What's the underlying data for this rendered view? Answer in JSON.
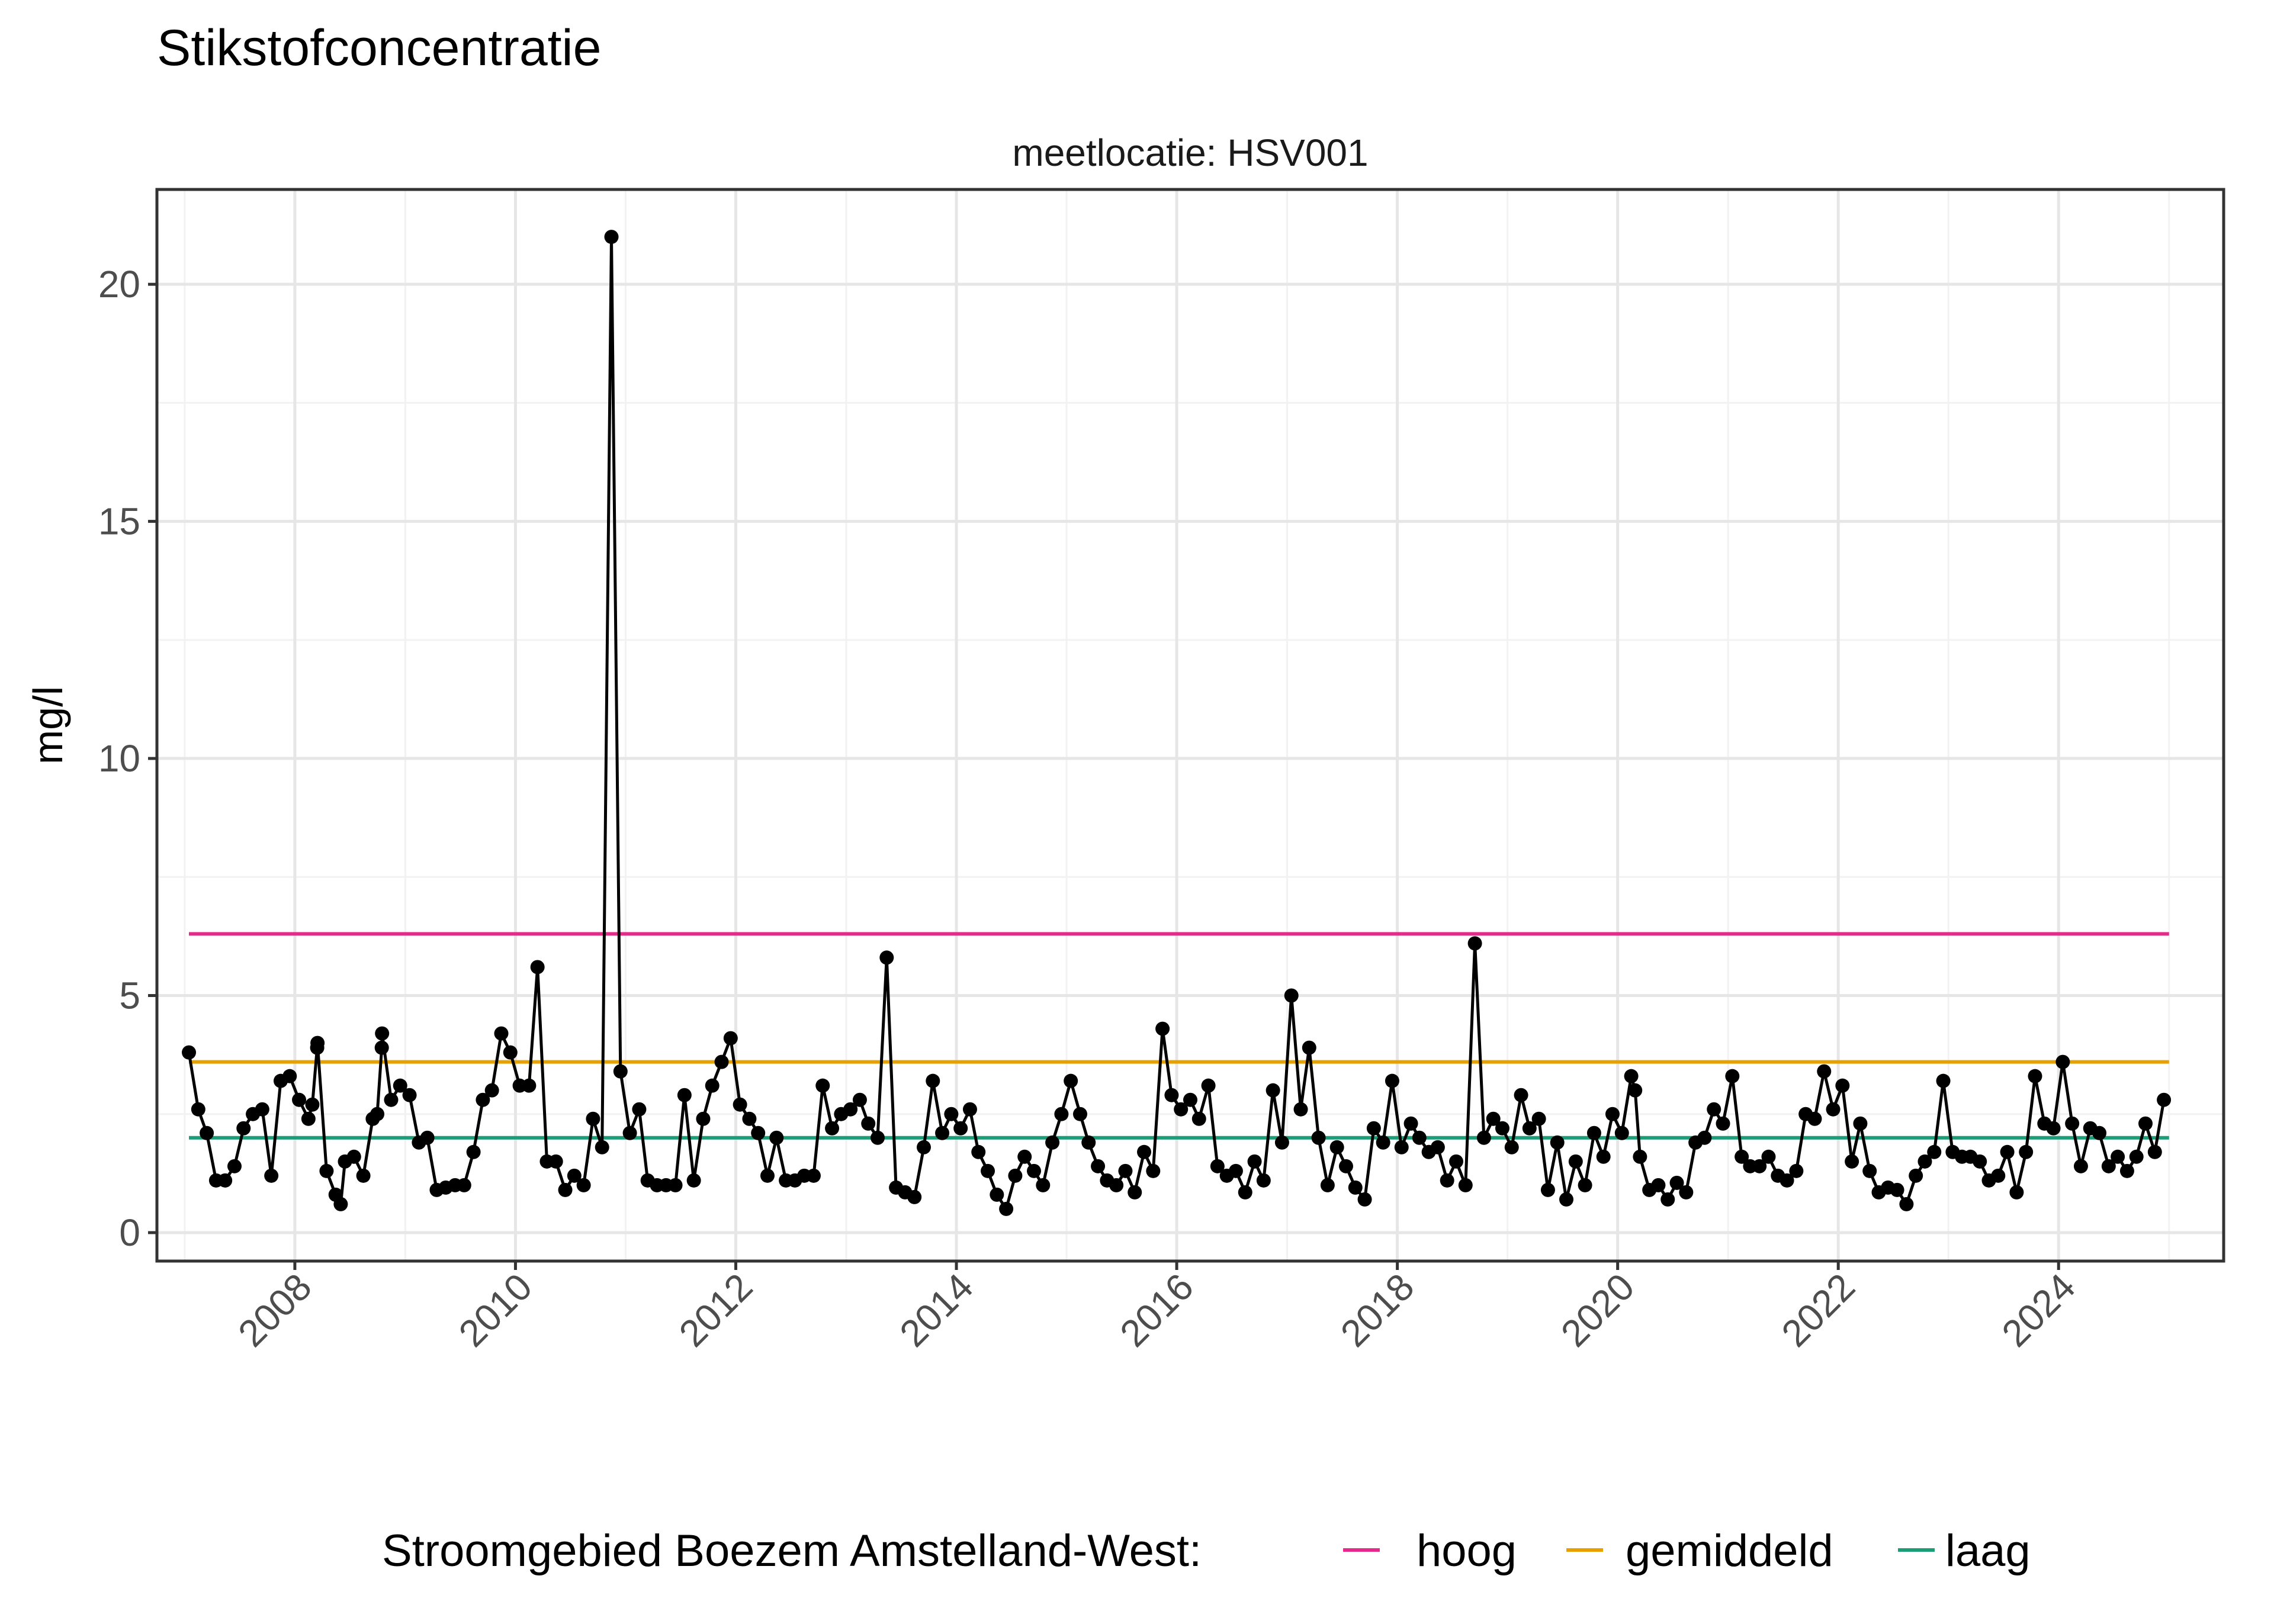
{
  "chart_data": {
    "type": "line",
    "title": "Stikstofconcentratie",
    "facet_label": "meetlocatie: HSV001",
    "xlabel": "",
    "ylabel": "mg/l",
    "x_ticks": [
      "2008",
      "2010",
      "2012",
      "2014",
      "2016",
      "2018",
      "2020",
      "2022",
      "2024"
    ],
    "y_ticks": [
      "0",
      "5",
      "10",
      "15",
      "20"
    ],
    "xlim": [
      "2006-10-01",
      "2025-07-01"
    ],
    "ylim": [
      -0.6,
      22
    ],
    "grid": true,
    "legend": {
      "position": "bottom",
      "title": "Stroomgebied Boezem Amstelland-West:",
      "items": [
        {
          "label": "hoog",
          "color": "#e7298a"
        },
        {
          "label": "gemiddeld",
          "color": "#e6a000"
        },
        {
          "label": "laag",
          "color": "#1b9e77"
        }
      ]
    },
    "reference_lines": [
      {
        "name": "hoog",
        "value": 6.3,
        "x_start": "2007-01-15",
        "x_end": "2025-01-01",
        "color": "#e7298a"
      },
      {
        "name": "gemiddeld",
        "value": 3.6,
        "x_start": "2007-01-15",
        "x_end": "2025-01-01",
        "color": "#e6a000"
      },
      {
        "name": "laag",
        "value": 2.0,
        "x_start": "2007-01-15",
        "x_end": "2025-01-01",
        "color": "#1b9e77"
      }
    ],
    "series": [
      {
        "marker_color": "#000000",
        "points": [
          [
            "2007-01-15",
            3.8
          ],
          [
            "2007-02-15",
            2.6
          ],
          [
            "2007-03-15",
            2.1
          ],
          [
            "2007-04-15",
            1.1
          ],
          [
            "2007-05-15",
            1.1
          ],
          [
            "2007-06-15",
            1.4
          ],
          [
            "2007-07-15",
            2.2
          ],
          [
            "2007-08-15",
            2.5
          ],
          [
            "2007-09-15",
            2.6
          ],
          [
            "2007-10-15",
            1.2
          ],
          [
            "2007-11-15",
            3.2
          ],
          [
            "2007-12-15",
            3.3
          ],
          [
            "2008-01-15",
            2.8
          ],
          [
            "2008-02-15",
            2.4
          ],
          [
            "2008-02-28",
            2.7
          ],
          [
            "2008-03-15",
            3.9
          ],
          [
            "2008-03-16",
            4.0
          ],
          [
            "2008-04-15",
            1.3
          ],
          [
            "2008-05-15",
            0.8
          ],
          [
            "2008-06-01",
            0.6
          ],
          [
            "2008-06-15",
            1.5
          ],
          [
            "2008-07-15",
            1.6
          ],
          [
            "2008-08-15",
            1.2
          ],
          [
            "2008-09-15",
            2.4
          ],
          [
            "2008-09-30",
            2.5
          ],
          [
            "2008-10-15",
            3.9
          ],
          [
            "2008-10-16",
            4.2
          ],
          [
            "2008-11-15",
            2.8
          ],
          [
            "2008-12-15",
            3.1
          ],
          [
            "2009-01-15",
            2.9
          ],
          [
            "2009-02-15",
            1.9
          ],
          [
            "2009-03-15",
            2.0
          ],
          [
            "2009-04-15",
            0.9
          ],
          [
            "2009-05-15",
            0.95
          ],
          [
            "2009-06-15",
            1.0
          ],
          [
            "2009-07-15",
            1.0
          ],
          [
            "2009-08-15",
            1.7
          ],
          [
            "2009-09-15",
            2.8
          ],
          [
            "2009-10-15",
            3.0
          ],
          [
            "2009-11-15",
            4.2
          ],
          [
            "2009-12-15",
            3.8
          ],
          [
            "2010-01-15",
            3.1
          ],
          [
            "2010-02-15",
            3.1
          ],
          [
            "2010-03-15",
            5.6
          ],
          [
            "2010-04-15",
            1.5
          ],
          [
            "2010-05-15",
            1.5
          ],
          [
            "2010-06-15",
            0.9
          ],
          [
            "2010-07-15",
            1.2
          ],
          [
            "2010-08-15",
            1.0
          ],
          [
            "2010-09-15",
            2.4
          ],
          [
            "2010-10-15",
            1.8
          ],
          [
            "2010-11-15",
            21.0
          ],
          [
            "2010-12-15",
            3.4
          ],
          [
            "2011-01-15",
            2.1
          ],
          [
            "2011-02-15",
            2.6
          ],
          [
            "2011-03-15",
            1.1
          ],
          [
            "2011-04-15",
            1.0
          ],
          [
            "2011-05-15",
            1.0
          ],
          [
            "2011-06-15",
            1.0
          ],
          [
            "2011-07-15",
            2.9
          ],
          [
            "2011-08-15",
            1.1
          ],
          [
            "2011-09-15",
            2.4
          ],
          [
            "2011-10-15",
            3.1
          ],
          [
            "2011-11-15",
            3.6
          ],
          [
            "2011-12-15",
            4.1
          ],
          [
            "2012-01-15",
            2.7
          ],
          [
            "2012-02-15",
            2.4
          ],
          [
            "2012-03-15",
            2.1
          ],
          [
            "2012-04-15",
            1.2
          ],
          [
            "2012-05-15",
            2.0
          ],
          [
            "2012-06-15",
            1.1
          ],
          [
            "2012-07-15",
            1.1
          ],
          [
            "2012-08-15",
            1.2
          ],
          [
            "2012-09-15",
            1.2
          ],
          [
            "2012-10-15",
            3.1
          ],
          [
            "2012-11-15",
            2.2
          ],
          [
            "2012-12-15",
            2.5
          ],
          [
            "2013-01-15",
            2.6
          ],
          [
            "2013-02-15",
            2.8
          ],
          [
            "2013-03-15",
            2.3
          ],
          [
            "2013-04-15",
            2.0
          ],
          [
            "2013-05-15",
            5.8
          ],
          [
            "2013-06-15",
            0.95
          ],
          [
            "2013-07-15",
            0.85
          ],
          [
            "2013-08-15",
            0.75
          ],
          [
            "2013-09-15",
            1.8
          ],
          [
            "2013-10-15",
            3.2
          ],
          [
            "2013-11-15",
            2.1
          ],
          [
            "2013-12-15",
            2.5
          ],
          [
            "2014-01-15",
            2.2
          ],
          [
            "2014-02-15",
            2.6
          ],
          [
            "2014-03-15",
            1.7
          ],
          [
            "2014-04-15",
            1.3
          ],
          [
            "2014-05-15",
            0.8
          ],
          [
            "2014-06-15",
            0.5
          ],
          [
            "2014-07-15",
            1.2
          ],
          [
            "2014-08-15",
            1.6
          ],
          [
            "2014-09-15",
            1.3
          ],
          [
            "2014-10-15",
            1.0
          ],
          [
            "2014-11-15",
            1.9
          ],
          [
            "2014-12-15",
            2.5
          ],
          [
            "2015-01-15",
            3.2
          ],
          [
            "2015-02-15",
            2.5
          ],
          [
            "2015-03-15",
            1.9
          ],
          [
            "2015-04-15",
            1.4
          ],
          [
            "2015-05-15",
            1.1
          ],
          [
            "2015-06-15",
            1.0
          ],
          [
            "2015-07-15",
            1.3
          ],
          [
            "2015-08-15",
            0.85
          ],
          [
            "2015-09-15",
            1.7
          ],
          [
            "2015-10-15",
            1.3
          ],
          [
            "2015-11-15",
            4.3
          ],
          [
            "2015-12-15",
            2.9
          ],
          [
            "2016-01-15",
            2.6
          ],
          [
            "2016-02-15",
            2.8
          ],
          [
            "2016-03-15",
            2.4
          ],
          [
            "2016-04-15",
            3.1
          ],
          [
            "2016-05-15",
            1.4
          ],
          [
            "2016-06-15",
            1.2
          ],
          [
            "2016-07-15",
            1.3
          ],
          [
            "2016-08-15",
            0.85
          ],
          [
            "2016-09-15",
            1.5
          ],
          [
            "2016-10-15",
            1.1
          ],
          [
            "2016-11-15",
            3.0
          ],
          [
            "2016-12-15",
            1.9
          ],
          [
            "2017-01-15",
            5.0
          ],
          [
            "2017-02-15",
            2.6
          ],
          [
            "2017-03-15",
            3.9
          ],
          [
            "2017-04-15",
            2.0
          ],
          [
            "2017-05-15",
            1.0
          ],
          [
            "2017-06-15",
            1.8
          ],
          [
            "2017-07-15",
            1.4
          ],
          [
            "2017-08-15",
            0.95
          ],
          [
            "2017-09-15",
            0.7
          ],
          [
            "2017-10-15",
            2.2
          ],
          [
            "2017-11-15",
            1.9
          ],
          [
            "2017-12-15",
            3.2
          ],
          [
            "2018-01-15",
            1.8
          ],
          [
            "2018-02-15",
            2.3
          ],
          [
            "2018-03-15",
            2.0
          ],
          [
            "2018-04-15",
            1.7
          ],
          [
            "2018-05-15",
            1.8
          ],
          [
            "2018-06-15",
            1.1
          ],
          [
            "2018-07-15",
            1.5
          ],
          [
            "2018-08-15",
            1.0
          ],
          [
            "2018-09-15",
            6.1
          ],
          [
            "2018-10-15",
            2.0
          ],
          [
            "2018-11-15",
            2.4
          ],
          [
            "2018-12-15",
            2.2
          ],
          [
            "2019-01-15",
            1.8
          ],
          [
            "2019-02-15",
            2.9
          ],
          [
            "2019-03-15",
            2.2
          ],
          [
            "2019-04-15",
            2.4
          ],
          [
            "2019-05-15",
            0.9
          ],
          [
            "2019-06-15",
            1.9
          ],
          [
            "2019-07-15",
            0.7
          ],
          [
            "2019-08-15",
            1.5
          ],
          [
            "2019-09-15",
            1.0
          ],
          [
            "2019-10-15",
            2.1
          ],
          [
            "2019-11-15",
            1.6
          ],
          [
            "2019-12-15",
            2.5
          ],
          [
            "2020-01-15",
            2.1
          ],
          [
            "2020-02-15",
            3.3
          ],
          [
            "2020-02-28",
            3.0
          ],
          [
            "2020-03-15",
            1.6
          ],
          [
            "2020-04-15",
            0.9
          ],
          [
            "2020-05-15",
            1.0
          ],
          [
            "2020-06-15",
            0.7
          ],
          [
            "2020-07-15",
            1.05
          ],
          [
            "2020-08-15",
            0.85
          ],
          [
            "2020-09-15",
            1.9
          ],
          [
            "2020-10-15",
            2.0
          ],
          [
            "2020-11-15",
            2.6
          ],
          [
            "2020-12-15",
            2.3
          ],
          [
            "2021-01-15",
            3.3
          ],
          [
            "2021-02-15",
            1.6
          ],
          [
            "2021-03-15",
            1.4
          ],
          [
            "2021-04-15",
            1.4
          ],
          [
            "2021-05-15",
            1.6
          ],
          [
            "2021-06-15",
            1.2
          ],
          [
            "2021-07-15",
            1.1
          ],
          [
            "2021-08-15",
            1.3
          ],
          [
            "2021-09-15",
            2.5
          ],
          [
            "2021-10-15",
            2.4
          ],
          [
            "2021-11-15",
            3.4
          ],
          [
            "2021-12-15",
            2.6
          ],
          [
            "2022-01-15",
            3.1
          ],
          [
            "2022-02-15",
            1.5
          ],
          [
            "2022-03-15",
            2.3
          ],
          [
            "2022-04-15",
            1.3
          ],
          [
            "2022-05-15",
            0.85
          ],
          [
            "2022-06-15",
            0.95
          ],
          [
            "2022-07-15",
            0.9
          ],
          [
            "2022-08-15",
            0.6
          ],
          [
            "2022-09-15",
            1.2
          ],
          [
            "2022-10-15",
            1.5
          ],
          [
            "2022-11-15",
            1.7
          ],
          [
            "2022-12-15",
            3.2
          ],
          [
            "2023-01-15",
            1.7
          ],
          [
            "2023-02-15",
            1.6
          ],
          [
            "2023-03-15",
            1.6
          ],
          [
            "2023-04-15",
            1.5
          ],
          [
            "2023-05-15",
            1.1
          ],
          [
            "2023-06-15",
            1.2
          ],
          [
            "2023-07-15",
            1.7
          ],
          [
            "2023-08-15",
            0.85
          ],
          [
            "2023-09-15",
            1.7
          ],
          [
            "2023-10-15",
            3.3
          ],
          [
            "2023-11-15",
            2.3
          ],
          [
            "2023-12-15",
            2.2
          ],
          [
            "2024-01-15",
            3.6
          ],
          [
            "2024-02-15",
            2.3
          ],
          [
            "2024-03-15",
            1.4
          ],
          [
            "2024-04-15",
            2.2
          ],
          [
            "2024-05-15",
            2.1
          ],
          [
            "2024-06-15",
            1.4
          ],
          [
            "2024-07-15",
            1.6
          ],
          [
            "2024-08-15",
            1.3
          ],
          [
            "2024-09-15",
            1.6
          ],
          [
            "2024-10-15",
            2.3
          ],
          [
            "2024-11-15",
            1.7
          ],
          [
            "2024-12-15",
            2.8
          ]
        ]
      }
    ]
  }
}
